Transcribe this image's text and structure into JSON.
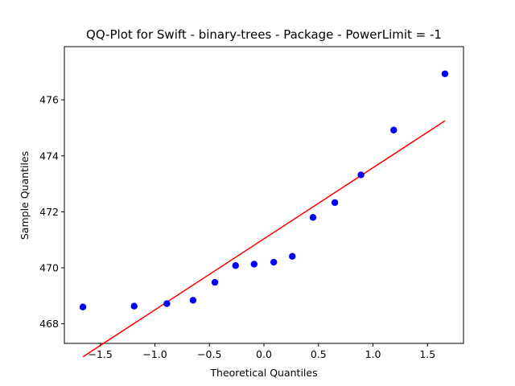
{
  "chart_data": {
    "type": "scatter",
    "title": "QQ-Plot for Swift - binary-trees - Package - PowerLimit = -1",
    "xlabel": "Theoretical Quantiles",
    "ylabel": "Sample Quantiles",
    "xlim": [
      -1.83,
      1.83
    ],
    "ylim": [
      467.3,
      477.9
    ],
    "x_ticks": [
      -1.5,
      -1.0,
      -0.5,
      0.0,
      0.5,
      1.0,
      1.5
    ],
    "x_tick_labels": [
      "−1.5",
      "−1.0",
      "−0.5",
      "0.0",
      "0.5",
      "1.0",
      "1.5"
    ],
    "y_ticks": [
      468,
      470,
      472,
      474,
      476
    ],
    "y_tick_labels": [
      "468",
      "470",
      "472",
      "474",
      "476"
    ],
    "grid": false,
    "series": [
      {
        "kind": "points",
        "color": "#0000ff",
        "x": [
          -1.66,
          -1.19,
          -0.89,
          -0.65,
          -0.45,
          -0.26,
          -0.09,
          0.09,
          0.26,
          0.45,
          0.65,
          0.89,
          1.19,
          1.66
        ],
        "y": [
          468.6,
          468.63,
          468.72,
          468.84,
          469.48,
          470.08,
          470.13,
          470.2,
          470.41,
          471.8,
          472.33,
          473.32,
          474.92,
          476.93
        ]
      },
      {
        "kind": "line",
        "color": "#ff0000",
        "x": [
          -1.66,
          1.66
        ],
        "y": [
          466.82,
          475.25
        ]
      }
    ]
  }
}
